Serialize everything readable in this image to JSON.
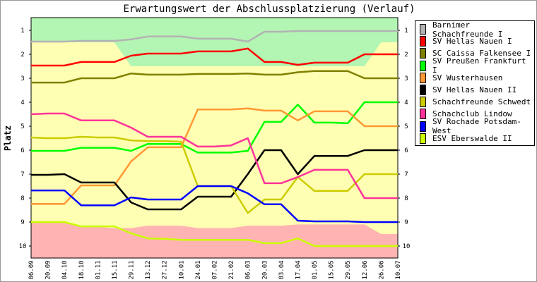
{
  "chart_data": {
    "type": "line",
    "title": "Erwartungswert der Abschlussplatzierung (Verlauf)",
    "xlabel": "",
    "ylabel": "Platz",
    "ylim": [
      1,
      10
    ],
    "y_inverted": true,
    "yticks": [
      "1",
      "2",
      "3",
      "4",
      "5",
      "6",
      "7",
      "8",
      "9",
      "10"
    ],
    "grid": false,
    "legend_position": "right",
    "categories": [
      "06.09",
      "20.09",
      "04.10",
      "18.10",
      "01.11",
      "15.11",
      "29.11",
      "13.12",
      "27.12",
      "10.01",
      "24.01",
      "07.02",
      "21.02",
      "06.03",
      "20.03",
      "03.04",
      "17.04",
      "01.05",
      "15.05",
      "29.05",
      "12.06",
      "26.06",
      "10.07"
    ],
    "bands": {
      "best_possible_upper": {
        "color": "#b3f5b3",
        "values": [
          1.5,
          1.5,
          1.5,
          1.5,
          1.5,
          1.5,
          2.5,
          2.5,
          2.5,
          2.5,
          2.5,
          2.5,
          2.5,
          2.5,
          2.5,
          2.5,
          2.5,
          2.5,
          2.5,
          2.5,
          2.5,
          1.5,
          1.5
        ]
      },
      "worst_possible_lower": {
        "color": "#ffb3b3",
        "values": [
          9.0,
          9.0,
          9.0,
          9.15,
          9.2,
          9.25,
          9.25,
          9.15,
          9.15,
          9.15,
          9.25,
          9.25,
          9.25,
          9.15,
          9.15,
          9.15,
          9.1,
          9.1,
          9.1,
          9.1,
          9.1,
          9.5,
          9.5
        ]
      },
      "middle_color": "#ffffb3"
    },
    "series": [
      {
        "name": "Barnimer Schachfreunde I",
        "color": "#b3b3b3",
        "values": [
          1.47,
          1.47,
          1.47,
          1.44,
          1.44,
          1.44,
          1.38,
          1.26,
          1.26,
          1.26,
          1.35,
          1.35,
          1.35,
          1.47,
          1.06,
          1.06,
          1.03,
          1.03,
          1.03,
          1.03,
          1.03,
          1.03,
          1.03
        ]
      },
      {
        "name": "SV Hellas Nauen I",
        "color": "#ff0000",
        "values": [
          2.47,
          2.47,
          2.47,
          2.32,
          2.32,
          2.32,
          2.06,
          1.97,
          1.97,
          1.97,
          1.88,
          1.88,
          1.88,
          1.76,
          2.32,
          2.32,
          2.44,
          2.35,
          2.35,
          2.35,
          2.0,
          2.0,
          2.0
        ]
      },
      {
        "name": "SC Caissa Falkensee I",
        "color": "#808000",
        "values": [
          3.18,
          3.18,
          3.18,
          3.0,
          3.0,
          3.0,
          2.8,
          2.85,
          2.85,
          2.85,
          2.82,
          2.82,
          2.82,
          2.8,
          2.85,
          2.85,
          2.75,
          2.7,
          2.7,
          2.7,
          3.0,
          3.0,
          3.0
        ]
      },
      {
        "name": "SV Preußen Frankfurt I",
        "color": "#00ff00",
        "values": [
          6.03,
          6.03,
          6.03,
          5.9,
          5.9,
          5.9,
          6.03,
          5.74,
          5.74,
          5.74,
          6.1,
          6.1,
          6.1,
          6.03,
          4.82,
          4.82,
          4.1,
          4.85,
          4.85,
          4.88,
          4.0,
          4.0,
          4.0
        ]
      },
      {
        "name": "SV Wusterhausen",
        "color": "#ff9933",
        "values": [
          8.24,
          8.24,
          8.24,
          7.47,
          7.47,
          7.47,
          6.47,
          5.88,
          5.88,
          5.88,
          4.3,
          4.3,
          4.3,
          4.26,
          4.35,
          4.35,
          4.76,
          4.38,
          4.38,
          4.38,
          5.0,
          5.0,
          5.0
        ]
      },
      {
        "name": "SV Hellas Nauen II",
        "color": "#000000",
        "values": [
          7.03,
          7.03,
          7.0,
          7.35,
          7.35,
          7.35,
          8.18,
          8.47,
          8.47,
          8.47,
          7.94,
          7.94,
          7.94,
          7.0,
          6.0,
          6.0,
          7.0,
          6.24,
          6.24,
          6.24,
          6.0,
          6.0,
          6.0
        ]
      },
      {
        "name": "Schachfreunde Schwedt",
        "color": "#cccc00",
        "values": [
          5.47,
          5.5,
          5.5,
          5.44,
          5.47,
          5.47,
          5.59,
          5.62,
          5.62,
          5.65,
          7.5,
          7.5,
          7.5,
          8.62,
          8.06,
          8.06,
          7.12,
          7.7,
          7.7,
          7.7,
          7.0,
          7.0,
          7.0
        ]
      },
      {
        "name": "Schachclub Lindow",
        "color": "#ff3399",
        "values": [
          4.5,
          4.47,
          4.47,
          4.76,
          4.76,
          4.76,
          5.06,
          5.44,
          5.44,
          5.44,
          5.85,
          5.85,
          5.8,
          5.5,
          7.38,
          7.38,
          7.12,
          6.82,
          6.82,
          6.82,
          8.0,
          8.0,
          8.0
        ]
      },
      {
        "name": "SV Rochade Potsdam-West",
        "color": "#0000ff",
        "values": [
          7.68,
          7.68,
          7.68,
          8.3,
          8.3,
          8.3,
          7.97,
          8.06,
          8.06,
          8.06,
          7.5,
          7.5,
          7.5,
          7.8,
          8.26,
          8.26,
          8.94,
          8.97,
          8.97,
          8.97,
          9.0,
          9.0,
          9.0
        ]
      },
      {
        "name": "ESV Eberswalde II",
        "color": "#ccff00",
        "values": [
          9.0,
          9.0,
          9.0,
          9.18,
          9.18,
          9.18,
          9.47,
          9.68,
          9.7,
          9.74,
          9.74,
          9.74,
          9.74,
          9.74,
          9.88,
          9.88,
          9.68,
          10.0,
          10.0,
          10.0,
          10.0,
          10.0,
          10.0
        ]
      }
    ]
  }
}
